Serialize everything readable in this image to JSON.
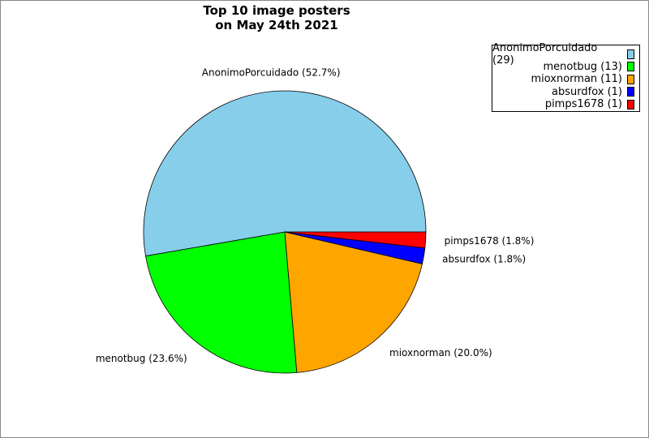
{
  "chart_data": {
    "type": "pie",
    "title": "Top 10 image posters\non May 24th 2021",
    "title_lines": [
      "Top 10 image posters",
      "on May 24th 2021"
    ],
    "start_angle_deg": 0,
    "direction": "counterclockwise",
    "legend_position": "top-right",
    "slices": [
      {
        "name": "AnonimoPorcuidado",
        "count": 29,
        "percent": 52.7,
        "color": "#87CEEB",
        "label": "AnonimoPorcuidado (52.7%)",
        "legend": "AnonimoPorcuidado (29)"
      },
      {
        "name": "menotbug",
        "count": 13,
        "percent": 23.6,
        "color": "#00FF00",
        "label": "menotbug (23.6%)",
        "legend": "menotbug (13)"
      },
      {
        "name": "mioxnorman",
        "count": 11,
        "percent": 20.0,
        "color": "#FFA500",
        "label": "mioxnorman (20.0%)",
        "legend": "mioxnorman (11)"
      },
      {
        "name": "absurdfox",
        "count": 1,
        "percent": 1.8,
        "color": "#0000FF",
        "label": "absurdfox (1.8%)",
        "legend": "absurdfox (1)"
      },
      {
        "name": "pimps1678",
        "count": 1,
        "percent": 1.8,
        "color": "#FF0000",
        "label": "pimps1678 (1.8%)",
        "legend": "pimps1678 (1)"
      }
    ]
  }
}
